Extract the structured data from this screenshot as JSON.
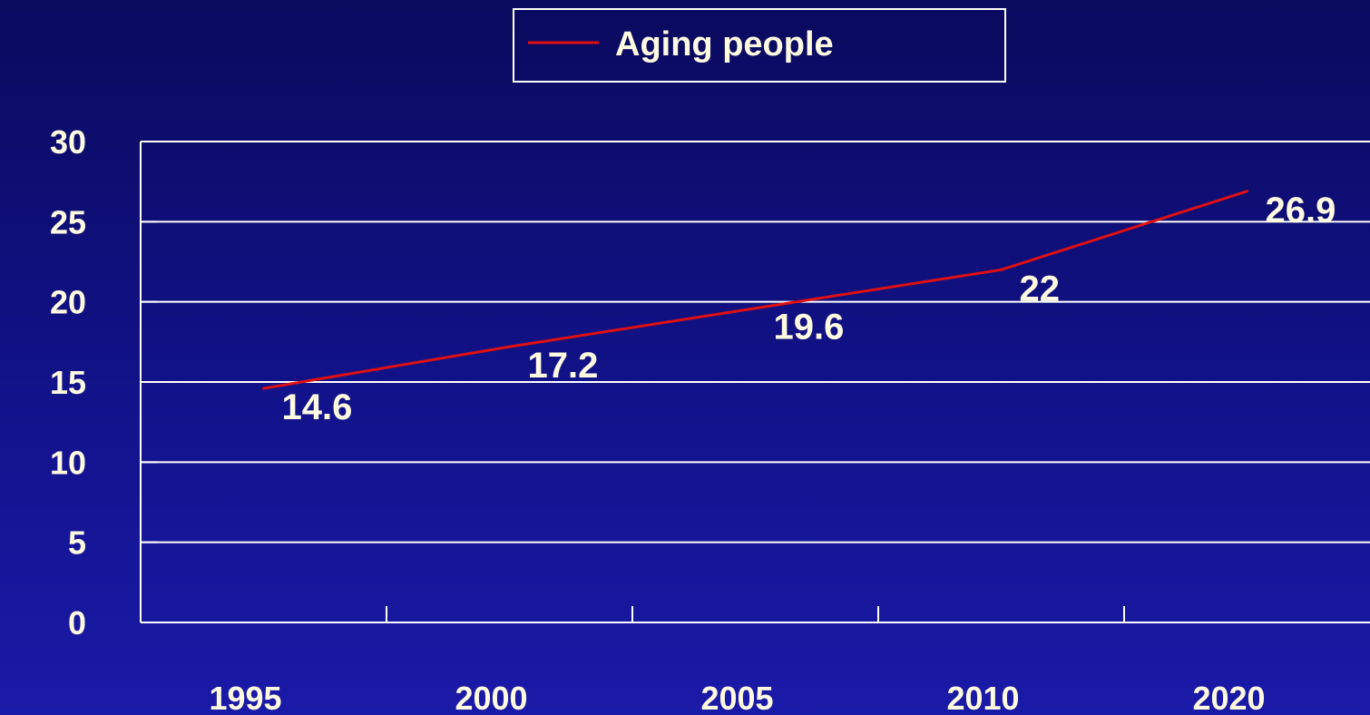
{
  "chart_data": {
    "type": "line",
    "categories": [
      "1995",
      "2000",
      "2005",
      "2010",
      "2020"
    ],
    "series": [
      {
        "name": "Aging people",
        "values": [
          14.6,
          17.2,
          19.6,
          22,
          26.9
        ]
      }
    ],
    "data_labels": [
      "14.6",
      "17.2",
      "19.6",
      "22",
      "26.9"
    ],
    "y_ticks": [
      "0",
      "5",
      "10",
      "15",
      "20",
      "25",
      "30"
    ],
    "ylim": [
      0,
      30
    ],
    "grid": true,
    "legend_position": "top-center",
    "title": "",
    "xlabel": "",
    "ylabel": ""
  },
  "colors": {
    "background_top": "#0a0a5e",
    "background_bottom": "#1a1aa8",
    "text": "#fffbe0",
    "grid": "#ffffff",
    "series_line": "#e01010"
  }
}
